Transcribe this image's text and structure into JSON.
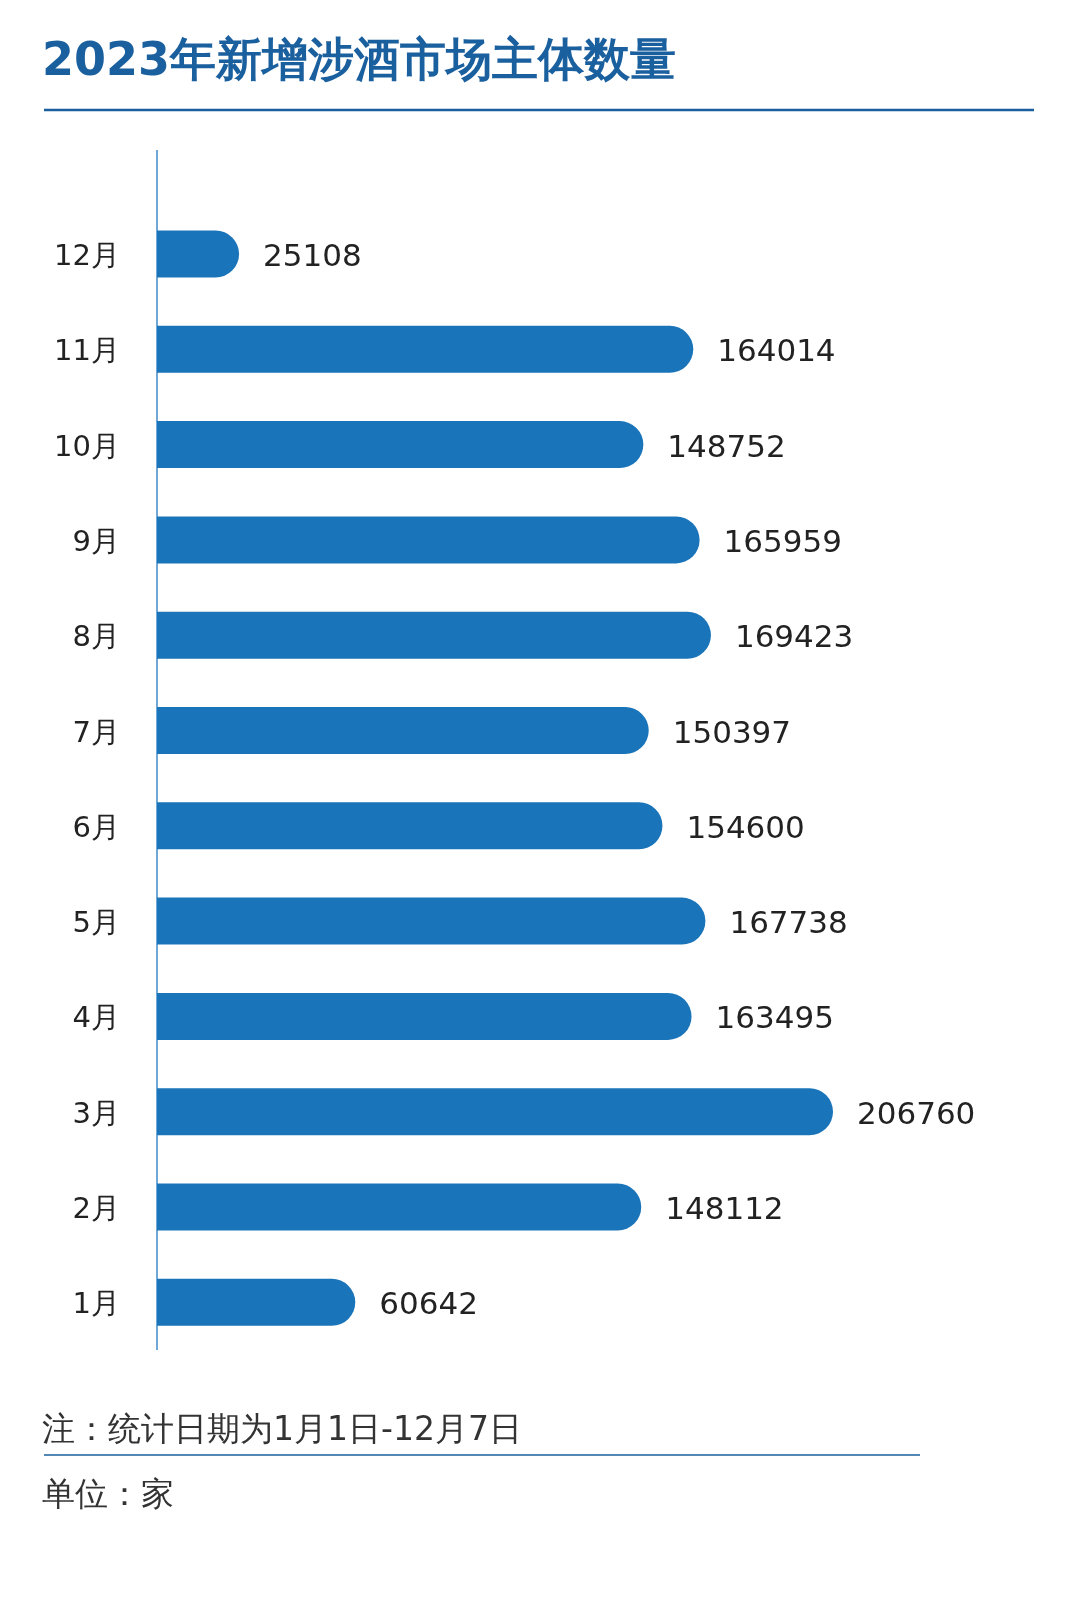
{
  "chart_data": {
    "type": "bar",
    "orientation": "horizontal",
    "title": "2023年新增涉酒市场主体数量",
    "categories": [
      "12月",
      "11月",
      "10月",
      "9月",
      "8月",
      "7月",
      "6月",
      "5月",
      "4月",
      "3月",
      "2月",
      "1月"
    ],
    "values": [
      25108,
      164014,
      148752,
      165959,
      169423,
      150397,
      154600,
      167738,
      163495,
      206760,
      148112,
      60642
    ],
    "color": "#1a74b9",
    "data_labels": true,
    "annotations": [
      "注：统计日期为1月1日-12月7日",
      "单位：家"
    ]
  }
}
